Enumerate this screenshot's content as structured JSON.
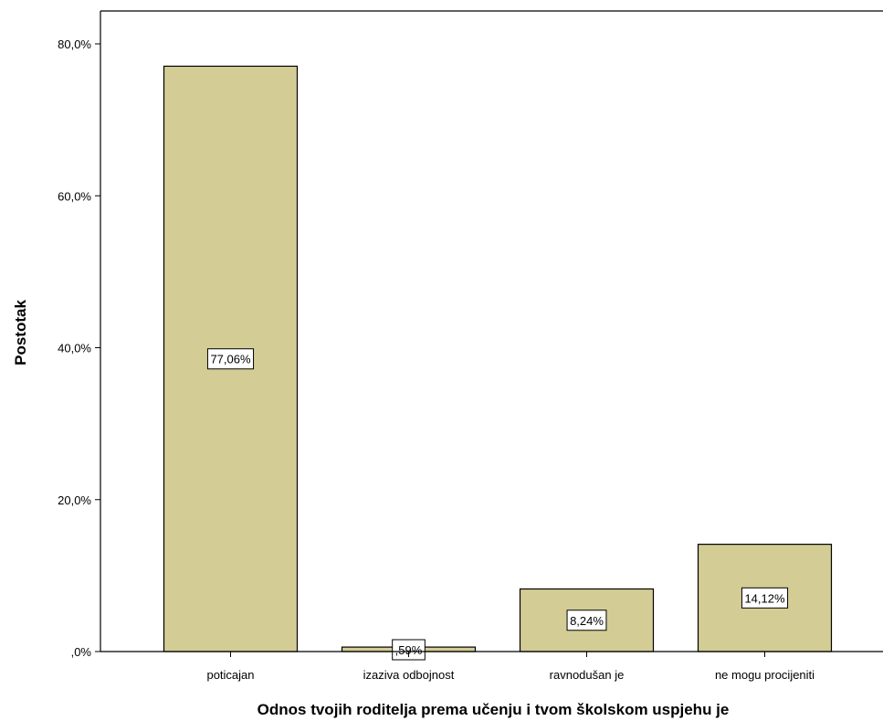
{
  "colors": {
    "bar_fill": "#d3cd95",
    "bar_stroke": "#000000",
    "axis": "#000000",
    "label_box_fill": "#ffffff"
  },
  "chart_data": {
    "type": "bar",
    "title": "",
    "xlabel": "Odnos tvojih roditelja prema učenju i tvom školskom uspjehu je",
    "ylabel": "Postotak",
    "categories": [
      "poticajan",
      "izaziva odbojnost",
      "ravnodušan je",
      "ne mogu procijeniti"
    ],
    "values": [
      77.06,
      0.59,
      8.24,
      14.12
    ],
    "data_labels": [
      "77,06%",
      ",59%",
      "8,24%",
      "14,12%"
    ],
    "ylim": [
      0,
      80
    ],
    "yticks": [
      0,
      20,
      40,
      60,
      80
    ],
    "ytick_labels": [
      ",0%",
      "20,0%",
      "40,0%",
      "60,0%",
      "80,0%"
    ],
    "grid": false,
    "legend": "none"
  }
}
